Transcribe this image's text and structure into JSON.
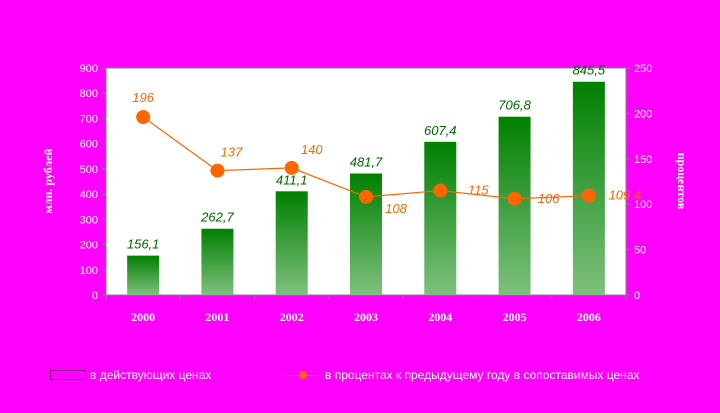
{
  "chart_data": {
    "type": "bar",
    "categories": [
      "2000",
      "2001",
      "2002",
      "2003",
      "2004",
      "2005",
      "2006"
    ],
    "series": [
      {
        "name": "в действующих ценах",
        "type": "bar",
        "axis": "left",
        "values": [
          156.1,
          262.7,
          411.1,
          481.7,
          607.4,
          706.8,
          845.5
        ],
        "labels": [
          "156,1",
          "262,7",
          "411,1",
          "481,7",
          "607,4",
          "706,8",
          "845,5"
        ],
        "color": "#008000"
      },
      {
        "name": "в процентах к предыдущему году в сопоставимых ценах",
        "type": "line",
        "axis": "right",
        "values": [
          196,
          137,
          140,
          108,
          115,
          106,
          109.4
        ],
        "labels": [
          "196",
          "137",
          "140",
          "108",
          "115",
          "106",
          "109,4"
        ],
        "color": "#ff6600"
      }
    ],
    "y_left": {
      "label": "млн. рублей",
      "lim": [
        0,
        900
      ],
      "ticks": [
        "0",
        "100",
        "200",
        "300",
        "400",
        "500",
        "600",
        "700",
        "800",
        "900"
      ]
    },
    "y_right": {
      "label": "процентов",
      "lim": [
        0,
        250
      ],
      "ticks": [
        "0",
        "50",
        "100",
        "150",
        "200",
        "250"
      ]
    },
    "legend_position": "bottom",
    "grid": false
  },
  "colors": {
    "background": "#ff00ff",
    "plot_area": "#ffffff",
    "bar_top": "#008000",
    "bar_bottom": "#7fc07f",
    "line": "#ff6600",
    "bar_label": "#006600",
    "line_label": "#ff6600",
    "axis_text": "#ffffff"
  }
}
